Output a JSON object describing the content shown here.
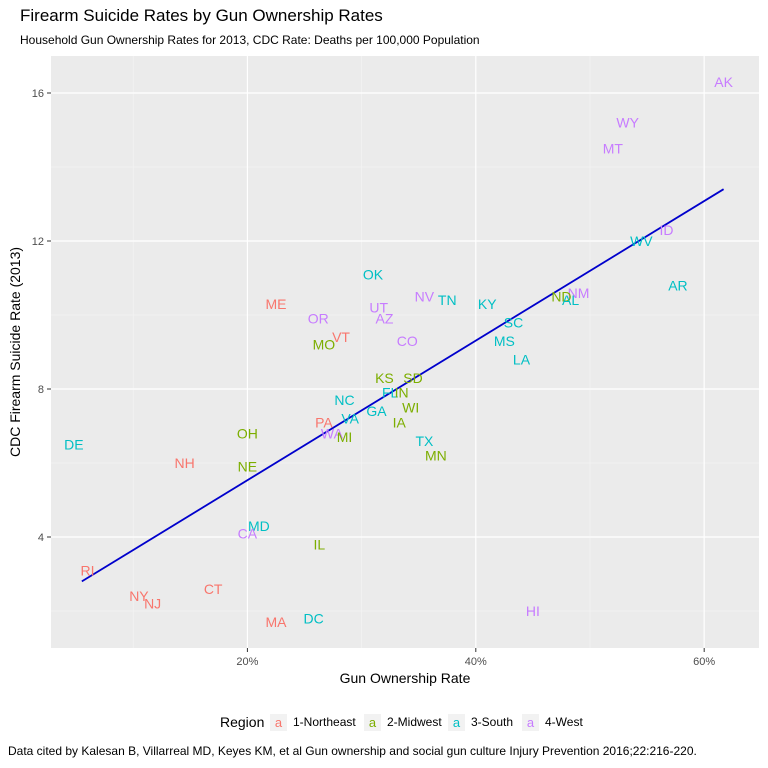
{
  "chart_data": {
    "type": "scatter",
    "title": "Firearm Suicide Rates by Gun Ownership Rates",
    "subtitle": "Household Gun Ownership Rates for 2013, CDC Rate: Deaths per 100,000 Population",
    "xlabel": "Gun Ownership Rate",
    "ylabel": "CDC Firearm Suicide Rate (2013)",
    "xlim": [
      0.028,
      0.648
    ],
    "ylim": [
      1.0,
      17.0
    ],
    "x_ticks": [
      0.2,
      0.4,
      0.6
    ],
    "x_tick_labels": [
      "20%",
      "40%",
      "60%"
    ],
    "y_ticks": [
      4,
      8,
      12,
      16
    ],
    "y_tick_labels": [
      "4",
      "8",
      "12",
      "16"
    ],
    "grid": true,
    "legend": {
      "title": "Region",
      "position": "bottom",
      "symbol": "a",
      "entries": [
        {
          "label": "1-Northeast",
          "color": "#F8766D"
        },
        {
          "label": "2-Midwest",
          "color": "#7CAE00"
        },
        {
          "label": "3-South",
          "color": "#00BFC4"
        },
        {
          "label": "4-West",
          "color": "#C77CFF"
        }
      ]
    },
    "trend_line": {
      "x": [
        0.055,
        0.617
      ],
      "y": [
        2.8,
        13.4
      ],
      "color": "#0000CC"
    },
    "points": [
      {
        "label": "AK",
        "x": 0.617,
        "y": 16.3,
        "region": "4-West"
      },
      {
        "label": "WY",
        "x": 0.533,
        "y": 15.2,
        "region": "4-West"
      },
      {
        "label": "MT",
        "x": 0.52,
        "y": 14.5,
        "region": "4-West"
      },
      {
        "label": "ID",
        "x": 0.567,
        "y": 12.3,
        "region": "4-West"
      },
      {
        "label": "WV",
        "x": 0.545,
        "y": 12.0,
        "region": "3-South"
      },
      {
        "label": "AR",
        "x": 0.577,
        "y": 10.8,
        "region": "3-South"
      },
      {
        "label": "OK",
        "x": 0.31,
        "y": 11.1,
        "region": "3-South"
      },
      {
        "label": "NM",
        "x": 0.49,
        "y": 10.6,
        "region": "4-West"
      },
      {
        "label": "ND",
        "x": 0.475,
        "y": 10.5,
        "region": "2-Midwest"
      },
      {
        "label": "AL",
        "x": 0.483,
        "y": 10.4,
        "region": "3-South"
      },
      {
        "label": "NV",
        "x": 0.355,
        "y": 10.5,
        "region": "4-West"
      },
      {
        "label": "TN",
        "x": 0.375,
        "y": 10.4,
        "region": "3-South"
      },
      {
        "label": "KY",
        "x": 0.41,
        "y": 10.3,
        "region": "3-South"
      },
      {
        "label": "ME",
        "x": 0.225,
        "y": 10.3,
        "region": "1-Northeast"
      },
      {
        "label": "UT",
        "x": 0.315,
        "y": 10.2,
        "region": "4-West"
      },
      {
        "label": "OR",
        "x": 0.262,
        "y": 9.9,
        "region": "4-West"
      },
      {
        "label": "AZ",
        "x": 0.32,
        "y": 9.9,
        "region": "4-West"
      },
      {
        "label": "SC",
        "x": 0.433,
        "y": 9.8,
        "region": "3-South"
      },
      {
        "label": "VT",
        "x": 0.282,
        "y": 9.4,
        "region": "1-Northeast"
      },
      {
        "label": "MO",
        "x": 0.267,
        "y": 9.2,
        "region": "2-Midwest"
      },
      {
        "label": "CO",
        "x": 0.34,
        "y": 9.3,
        "region": "4-West"
      },
      {
        "label": "MS",
        "x": 0.425,
        "y": 9.3,
        "region": "3-South"
      },
      {
        "label": "LA",
        "x": 0.44,
        "y": 8.8,
        "region": "3-South"
      },
      {
        "label": "KS",
        "x": 0.32,
        "y": 8.3,
        "region": "2-Midwest"
      },
      {
        "label": "SD",
        "x": 0.345,
        "y": 8.3,
        "region": "2-Midwest"
      },
      {
        "label": "FL",
        "x": 0.325,
        "y": 7.9,
        "region": "3-South"
      },
      {
        "label": "IN",
        "x": 0.335,
        "y": 7.9,
        "region": "2-Midwest"
      },
      {
        "label": "NC",
        "x": 0.285,
        "y": 7.7,
        "region": "3-South"
      },
      {
        "label": "GA",
        "x": 0.313,
        "y": 7.4,
        "region": "3-South"
      },
      {
        "label": "WI",
        "x": 0.343,
        "y": 7.5,
        "region": "2-Midwest"
      },
      {
        "label": "PA",
        "x": 0.267,
        "y": 7.1,
        "region": "1-Northeast"
      },
      {
        "label": "VA",
        "x": 0.29,
        "y": 7.2,
        "region": "3-South"
      },
      {
        "label": "IA",
        "x": 0.333,
        "y": 7.1,
        "region": "2-Midwest"
      },
      {
        "label": "WA",
        "x": 0.274,
        "y": 6.8,
        "region": "4-West"
      },
      {
        "label": "MI",
        "x": 0.285,
        "y": 6.7,
        "region": "2-Midwest"
      },
      {
        "label": "OH",
        "x": 0.2,
        "y": 6.8,
        "region": "2-Midwest"
      },
      {
        "label": "TX",
        "x": 0.355,
        "y": 6.6,
        "region": "3-South"
      },
      {
        "label": "DE",
        "x": 0.048,
        "y": 6.5,
        "region": "3-South"
      },
      {
        "label": "MN",
        "x": 0.365,
        "y": 6.2,
        "region": "2-Midwest"
      },
      {
        "label": "NH",
        "x": 0.145,
        "y": 6.0,
        "region": "1-Northeast"
      },
      {
        "label": "NE",
        "x": 0.2,
        "y": 5.9,
        "region": "2-Midwest"
      },
      {
        "label": "MD",
        "x": 0.21,
        "y": 4.3,
        "region": "3-South"
      },
      {
        "label": "CA",
        "x": 0.2,
        "y": 4.1,
        "region": "4-West"
      },
      {
        "label": "IL",
        "x": 0.263,
        "y": 3.8,
        "region": "2-Midwest"
      },
      {
        "label": "RI",
        "x": 0.06,
        "y": 3.1,
        "region": "1-Northeast"
      },
      {
        "label": "CT",
        "x": 0.17,
        "y": 2.6,
        "region": "1-Northeast"
      },
      {
        "label": "NY",
        "x": 0.105,
        "y": 2.4,
        "region": "1-Northeast"
      },
      {
        "label": "NJ",
        "x": 0.117,
        "y": 2.2,
        "region": "1-Northeast"
      },
      {
        "label": "HI",
        "x": 0.45,
        "y": 2.0,
        "region": "4-West"
      },
      {
        "label": "MA",
        "x": 0.225,
        "y": 1.7,
        "region": "1-Northeast"
      },
      {
        "label": "DC",
        "x": 0.258,
        "y": 1.8,
        "region": "3-South"
      }
    ]
  },
  "source_note": "Data cited by Kalesan B, Villarreal MD, Keyes KM, et al Gun ownership and social gun culture Injury Prevention 2016;22:216-220."
}
